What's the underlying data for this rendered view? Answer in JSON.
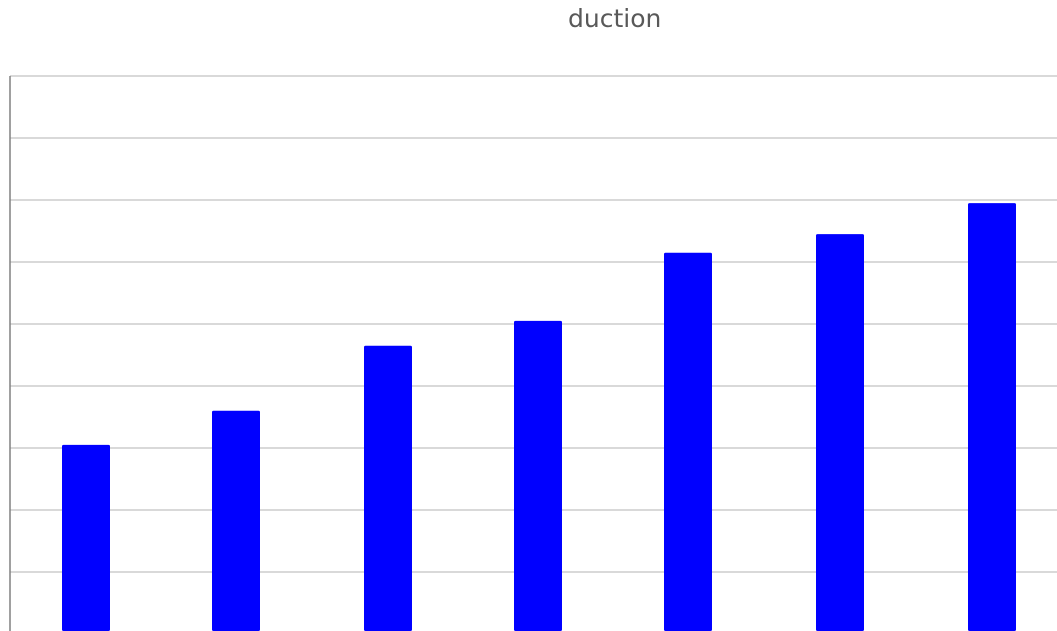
{
  "chart_data": {
    "type": "bar",
    "title": "duction",
    "categories": [
      "",
      "",
      "",
      "",
      "",
      "",
      ""
    ],
    "series": [
      {
        "values": [
          3.05,
          3.6,
          4.65,
          5.05,
          6.15,
          6.45,
          6.95
        ]
      }
    ],
    "ylim": [
      0,
      9
    ],
    "grid": true,
    "legend": "none",
    "colors": {
      "bar": "#0000ff",
      "grid": "#d9d9d9",
      "axis": "#808080",
      "title": "#595959"
    }
  }
}
